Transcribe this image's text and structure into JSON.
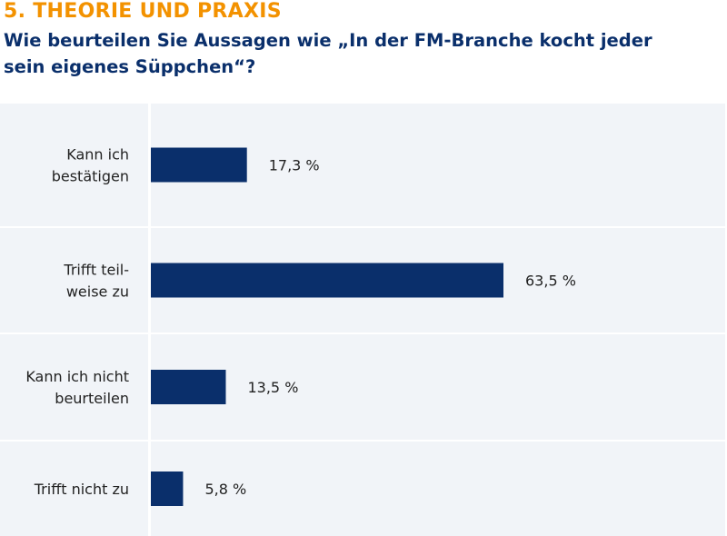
{
  "section_title": "5. THEORIE UND PRAXIS",
  "question": "Wie beurteilen Sie Aussagen wie „In der FM-Branche kocht jeder sein eigenes Süppchen“?",
  "colors": {
    "accent": "#f39200",
    "title": "#0a2f6b",
    "bar": "#0a2f6b",
    "panel": "#f1f4f8"
  },
  "chart_data": {
    "type": "bar",
    "orientation": "horizontal",
    "categories": [
      [
        "Kann ich",
        "bestätigen"
      ],
      [
        "Trifft teil-",
        "weise zu"
      ],
      [
        "Kann ich nicht",
        "beurteilen"
      ],
      [
        "Trifft nicht zu"
      ]
    ],
    "values": [
      17.3,
      63.5,
      13.5,
      5.8
    ],
    "value_labels": [
      "17,3 %",
      "63,5 %",
      "13,5 %",
      "5,8 %"
    ],
    "unit": "%",
    "xlim": [
      0,
      100
    ],
    "grid": false,
    "legend": "none"
  }
}
